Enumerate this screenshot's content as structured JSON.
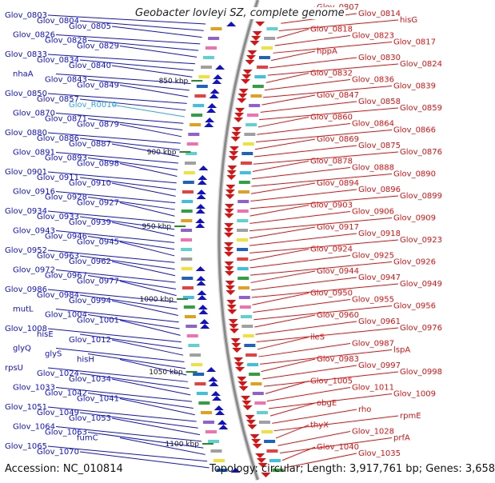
{
  "title": "Geobacter lovleyi SZ, complete genome",
  "footer": {
    "accession": "Accession: NC_010814",
    "summary": "Topology: circular; Length: 3,917,761 bp; Genes: 3,658"
  },
  "colors": {
    "plus_strand": "#1010d0",
    "minus_strand": "#e01010",
    "rna": "#30a8e0",
    "backbone": "#8a8a8a",
    "tick_mark": "#2a8a2a"
  },
  "scale_ticks": [
    "850 kbp",
    "900 kbp",
    "950 kbp",
    "1000 kbp",
    "1050 kbp",
    "1100 kbp"
  ],
  "left_labels": [
    "Glov_0803",
    "Glov_0804",
    "Glov_0805",
    "Glov_0826",
    "Glov_0828",
    "Glov_0829",
    "Glov_0833",
    "Glov_0834",
    "Glov_0840",
    "nhaA",
    "Glov_0843",
    "Glov_0849",
    "Glov_0850",
    "Glov_0857",
    "Glov_R0010",
    "Glov_0870",
    "Glov_0871",
    "Glov_0879",
    "Glov_0880",
    "Glov_0886",
    "Glov_0887",
    "Glov_0891",
    "Glov_0893",
    "Glov_0898",
    "Glov_0901",
    "Glov_0911",
    "Glov_0910",
    "Glov_0916",
    "Glov_0928",
    "Glov_0927",
    "Glov_0934",
    "Glov_0933",
    "Glov_0939",
    "Glov_0943",
    "Glov_0946",
    "Glov_0945",
    "Glov_0952",
    "Glov_0963",
    "Glov_0962",
    "Glov_0972",
    "Glov_0967",
    "Glov_0977",
    "Glov_0986",
    "Glov_0984",
    "Glov_0994",
    "mutL",
    "Glov_1004",
    "Glov_1001",
    "Glov_1008",
    "hisE",
    "Glov_1012",
    "glyQ",
    "glyS",
    "hisH",
    "rpsU",
    "Glov_1024",
    "Glov_1034",
    "Glov_1033",
    "Glov_1042",
    "Glov_1041",
    "Glov_1051",
    "Glov_1049",
    "Glov_1053",
    "Glov_1064",
    "Glov_1063",
    "fumC",
    "Glov_1065",
    "Glov_1070"
  ],
  "right_labels": [
    "Glov_0807",
    "Glov_0814",
    "hisG",
    "Glov_0818",
    "Glov_0823",
    "Glov_0817",
    "hppA",
    "Glov_0830",
    "Glov_0824",
    "Glov_0832",
    "Glov_0836",
    "Glov_0839",
    "Glov_0847",
    "Glov_0858",
    "Glov_0859",
    "Glov_0860",
    "Glov_0864",
    "Glov_0866",
    "Glov_0869",
    "Glov_0875",
    "Glov_0876",
    "Glov_0878",
    "Glov_0888",
    "Glov_0890",
    "Glov_0894",
    "Glov_0896",
    "Glov_0899",
    "Glov_0903",
    "Glov_0906",
    "Glov_0909",
    "Glov_0917",
    "Glov_0918",
    "Glov_0923",
    "Glov_0924",
    "Glov_0925",
    "Glov_0926",
    "Glov_0944",
    "Glov_0947",
    "Glov_0949",
    "Glov_0950",
    "Glov_0955",
    "Glov_0956",
    "Glov_0960",
    "Glov_0961",
    "Glov_0976",
    "ileS",
    "Glov_0987",
    "lspA",
    "Glov_0983",
    "Glov_0997",
    "Glov_0998",
    "Glov_1005",
    "Glov_1011",
    "Glov_1009",
    "obgE",
    "rho",
    "rpmE",
    "thyX",
    "Glov_1028",
    "prfA",
    "Glov_1040",
    "Glov_1035"
  ]
}
